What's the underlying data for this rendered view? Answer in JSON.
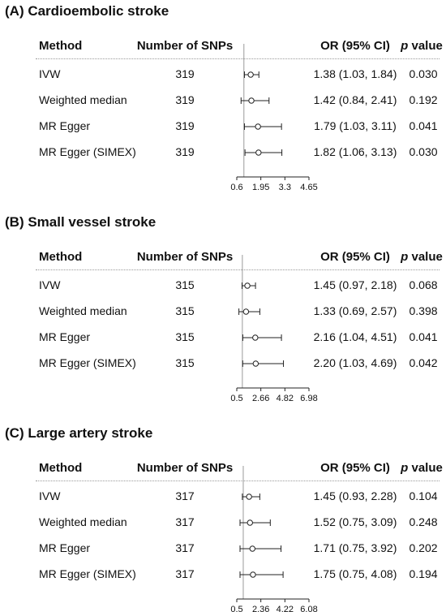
{
  "headers": {
    "method": "Method",
    "snps": "Number of SNPs",
    "or": "OR (95% CI)",
    "p_italic": "p",
    "p_rest": " value"
  },
  "chart_data": [
    {
      "type": "forest",
      "title": "(A) Cardioembolic stroke",
      "ref_line": 1,
      "ticks": [
        0.6,
        1.95,
        3.3,
        4.65
      ],
      "xlim": [
        0.6,
        4.65
      ],
      "rows": [
        {
          "method": "IVW",
          "snps": "319",
          "or": 1.38,
          "lo": 1.03,
          "hi": 1.84,
          "or_text": "1.38 (1.03, 1.84)",
          "p": "0.030"
        },
        {
          "method": "Weighted median",
          "snps": "319",
          "or": 1.42,
          "lo": 0.84,
          "hi": 2.41,
          "or_text": "1.42 (0.84, 2.41)",
          "p": "0.192"
        },
        {
          "method": "MR Egger",
          "snps": "319",
          "or": 1.79,
          "lo": 1.03,
          "hi": 3.11,
          "or_text": "1.79 (1.03, 3.11)",
          "p": "0.041"
        },
        {
          "method": "MR Egger (SIMEX)",
          "snps": "319",
          "or": 1.82,
          "lo": 1.06,
          "hi": 3.13,
          "or_text": "1.82 (1.06, 3.13)",
          "p": "0.030"
        }
      ]
    },
    {
      "type": "forest",
      "title": "(B) Small vessel stroke",
      "ref_line": 1,
      "ticks": [
        0.5,
        2.66,
        4.82,
        6.98
      ],
      "xlim": [
        0.5,
        6.98
      ],
      "rows": [
        {
          "method": "IVW",
          "snps": "315",
          "or": 1.45,
          "lo": 0.97,
          "hi": 2.18,
          "or_text": "1.45 (0.97, 2.18)",
          "p": "0.068"
        },
        {
          "method": "Weighted median",
          "snps": "315",
          "or": 1.33,
          "lo": 0.69,
          "hi": 2.57,
          "or_text": "1.33 (0.69, 2.57)",
          "p": "0.398"
        },
        {
          "method": "MR Egger",
          "snps": "315",
          "or": 2.16,
          "lo": 1.04,
          "hi": 4.51,
          "or_text": "2.16 (1.04, 4.51)",
          "p": "0.041"
        },
        {
          "method": "MR Egger (SIMEX)",
          "snps": "315",
          "or": 2.2,
          "lo": 1.03,
          "hi": 4.69,
          "or_text": "2.20 (1.03, 4.69)",
          "p": "0.042"
        }
      ]
    },
    {
      "type": "forest",
      "title": "(C) Large artery stroke",
      "ref_line": 1,
      "ticks": [
        0.5,
        2.36,
        4.22,
        6.08
      ],
      "xlim": [
        0.5,
        6.08
      ],
      "rows": [
        {
          "method": "IVW",
          "snps": "317",
          "or": 1.45,
          "lo": 0.93,
          "hi": 2.28,
          "or_text": "1.45 (0.93, 2.28)",
          "p": "0.104"
        },
        {
          "method": "Weighted median",
          "snps": "317",
          "or": 1.52,
          "lo": 0.75,
          "hi": 3.09,
          "or_text": "1.52 (0.75, 3.09)",
          "p": "0.248"
        },
        {
          "method": "MR Egger",
          "snps": "317",
          "or": 1.71,
          "lo": 0.75,
          "hi": 3.92,
          "or_text": "1.71 (0.75, 3.92)",
          "p": "0.202"
        },
        {
          "method": "MR Egger (SIMEX)",
          "snps": "317",
          "or": 1.75,
          "lo": 0.75,
          "hi": 4.08,
          "or_text": "1.75 (0.75, 4.08)",
          "p": "0.194"
        }
      ]
    }
  ]
}
